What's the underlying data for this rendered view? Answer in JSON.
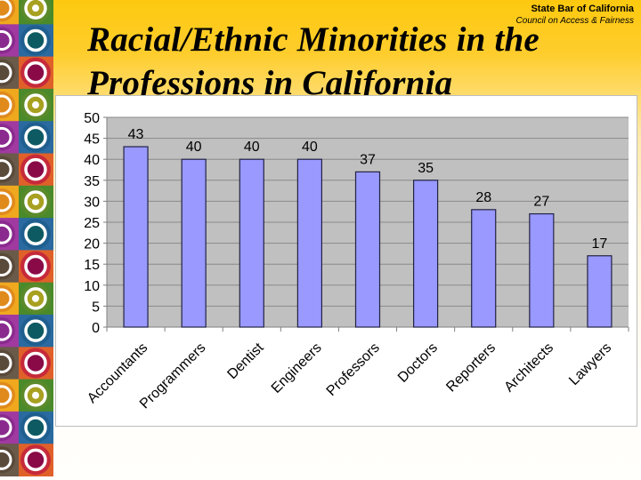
{
  "header": {
    "org_name": "State Bar of California",
    "org_subtitle": "Council on Access & Fairness",
    "title_line1": "Racial/Ethnic Minorities in the",
    "title_line2": "Professions in California"
  },
  "decor": {
    "tile_colors": {
      "left_column": [
        "#e08a1c",
        "#8a2a8e",
        "#5a4a3a"
      ],
      "right_column": [
        "#5a8a2a",
        "#1f5f8f",
        "#c62a3a"
      ],
      "inner_colors": [
        "#a8a020",
        "#0e5a62",
        "#8a0a48"
      ]
    }
  },
  "chart_data": {
    "type": "bar",
    "title": "",
    "xlabel": "",
    "ylabel": "",
    "categories": [
      "Accountants",
      "Programmers",
      "Dentist",
      "Engineers",
      "Professors",
      "Doctors",
      "Reporters",
      "Architects",
      "Lawyers"
    ],
    "values": [
      43,
      40,
      40,
      40,
      37,
      35,
      28,
      27,
      17
    ],
    "data_labels": [
      "43",
      "40",
      "40",
      "40",
      "37",
      "35",
      "28",
      "27",
      "17"
    ],
    "ylim": [
      0,
      50
    ],
    "yticks": [
      0,
      5,
      10,
      15,
      20,
      25,
      30,
      35,
      40,
      45,
      50
    ],
    "grid": true,
    "legend": "none",
    "colors": {
      "bar": "#9999ff",
      "bar_edge": "#222244",
      "plot_bg": "#c0c0c0",
      "grid": "#8a8a8a"
    }
  }
}
